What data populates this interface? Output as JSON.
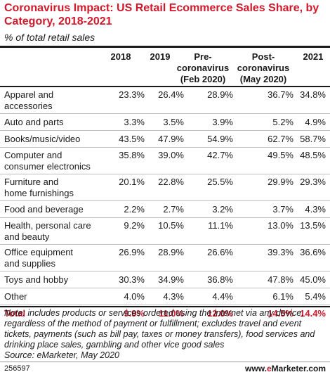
{
  "title": "Coronavirus Impact: US Retail Ecommerce Sales Share, by Category, 2018-2021",
  "subtitle": "% of total retail sales",
  "columns": [
    {
      "lines": [
        "2018"
      ]
    },
    {
      "lines": [
        "2019"
      ]
    },
    {
      "lines": [
        "Pre-",
        "coronavirus",
        "(Feb 2020)"
      ]
    },
    {
      "lines": [
        "Post-",
        "coronavirus",
        "(May 2020)"
      ]
    },
    {
      "lines": [
        "2021"
      ]
    }
  ],
  "chart_data": {
    "type": "table",
    "title": "Coronavirus Impact: US Retail Ecommerce Sales Share, by Category, 2018-2021",
    "subtitle": "% of total retail sales",
    "columns": [
      "2018",
      "2019",
      "Pre-coronavirus (Feb 2020)",
      "Post-coronavirus (May 2020)",
      "2021"
    ],
    "rows": [
      {
        "category": [
          "Apparel and",
          "accessories"
        ],
        "values": [
          "23.3%",
          "26.4%",
          "28.9%",
          "36.7%",
          "34.8%"
        ]
      },
      {
        "category": [
          "Auto and parts"
        ],
        "values": [
          "3.3%",
          "3.5%",
          "3.9%",
          "5.2%",
          "4.9%"
        ]
      },
      {
        "category": [
          "Books/music/video"
        ],
        "values": [
          "43.5%",
          "47.9%",
          "54.9%",
          "62.7%",
          "58.7%"
        ]
      },
      {
        "category": [
          "Computer and",
          "consumer electronics"
        ],
        "values": [
          "35.8%",
          "39.0%",
          "42.7%",
          "49.5%",
          "48.5%"
        ]
      },
      {
        "category": [
          "Furniture and",
          "home furnishings"
        ],
        "values": [
          "20.1%",
          "22.8%",
          "25.5%",
          "29.9%",
          "29.3%"
        ]
      },
      {
        "category": [
          "Food and beverage"
        ],
        "values": [
          "2.2%",
          "2.7%",
          "3.2%",
          "3.7%",
          "4.3%"
        ]
      },
      {
        "category": [
          "Health, personal care",
          "and beauty"
        ],
        "values": [
          "9.2%",
          "10.5%",
          "11.1%",
          "13.0%",
          "13.5%"
        ]
      },
      {
        "category": [
          "Office equipment",
          "and supplies"
        ],
        "values": [
          "26.9%",
          "28.9%",
          "26.6%",
          "39.3%",
          "36.6%"
        ]
      },
      {
        "category": [
          "Toys and hobby"
        ],
        "values": [
          "30.3%",
          "34.9%",
          "36.8%",
          "47.8%",
          "45.0%"
        ]
      },
      {
        "category": [
          "Other"
        ],
        "values": [
          "4.0%",
          "4.3%",
          "4.4%",
          "6.1%",
          "5.4%"
        ]
      },
      {
        "category": [
          "Total"
        ],
        "values": [
          "9.9%",
          "11.0%",
          "12.0%",
          "14.5%",
          "14.4%"
        ],
        "total": true
      }
    ]
  },
  "note": "Note: includes products or services ordered using the internet via any device, regardless of the method of payment or fulfillment; excludes travel and event tickets, payments (such as bill pay, taxes or money transfers), food services and drinking place sales, gambling and other vice good sales",
  "source": "Source: eMarketer, May 2020",
  "footer": {
    "id": "256597",
    "brand_prefix": "www.",
    "brand_e": "e",
    "brand_rest": "Marketer.com"
  },
  "colors": {
    "accent": "#d0192b",
    "text": "#1a1a1a",
    "rule": "#bdbdbd"
  }
}
